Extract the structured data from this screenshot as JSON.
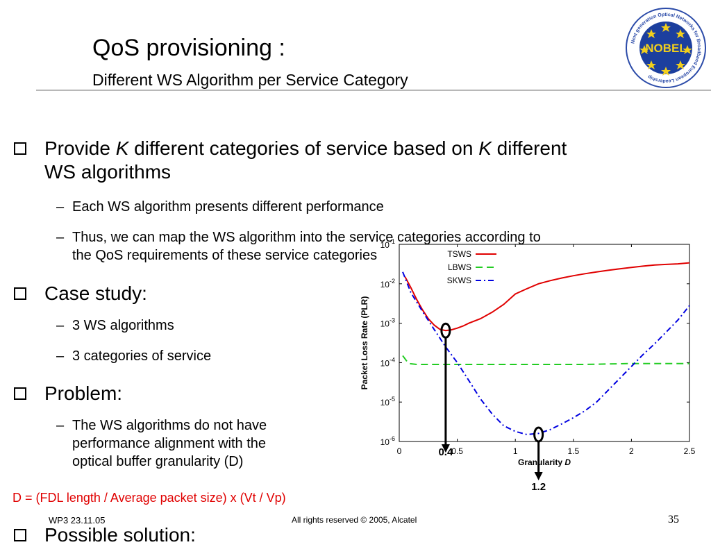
{
  "slide": {
    "title": "QoS provisioning :",
    "subtitle": "Different WS Algorithm per Service Category",
    "logo": {
      "icon": "nobel-logo",
      "center_text": "NOBEL",
      "ring_text": "Next generation Optical Networks for Broadband European Leadership"
    }
  },
  "bullets": {
    "provide": {
      "p1": "Provide ",
      "k": "K",
      "p2": " different categories of service based on ",
      "p3": " different",
      "line2": "WS algorithms"
    },
    "provide_sub": [
      "Each WS algorithm presents different performance",
      "Thus, we can map the WS algorithm into the service categories according to",
      "the QoS requirements of these service categories"
    ],
    "case": "Case study:",
    "case_sub": [
      "3 WS algorithms",
      "3 categories of service"
    ],
    "problem": "Problem:",
    "problem_sub": [
      "The WS algorithms do not have",
      "performance alignment with the",
      "optical buffer granularity (D)"
    ],
    "possible": "Possible solution:"
  },
  "formula": "D = (FDL length / Average packet size) x (Vt / Vp)",
  "footer": {
    "left": "WP3 23.11.05",
    "center": "All rights reserved © 2005, Alcatel",
    "page": "35"
  },
  "chart_data": {
    "type": "line",
    "xlabel": "Granularity ",
    "xlabel_var": "D",
    "ylabel": "Packet Loss Rate (PLR)",
    "xlim": [
      0,
      2.5
    ],
    "ylim_log10": [
      -6,
      -1
    ],
    "y_scale": "log",
    "xticks": [
      "0",
      "0.5",
      "1",
      "1.5",
      "2",
      "2.5"
    ],
    "yticks": [
      {
        "base": "10",
        "exp": "-1"
      },
      {
        "base": "10",
        "exp": "-2"
      },
      {
        "base": "10",
        "exp": "-3"
      },
      {
        "base": "10",
        "exp": "-4"
      },
      {
        "base": "10",
        "exp": "-5"
      },
      {
        "base": "10",
        "exp": "-6"
      }
    ],
    "legend_position": "top-left",
    "series": [
      {
        "name": "TSWS",
        "color": "#e00000",
        "dash": "solid",
        "points": [
          [
            0.05,
            0.015
          ],
          [
            0.1,
            0.008
          ],
          [
            0.15,
            0.004
          ],
          [
            0.2,
            0.0022
          ],
          [
            0.25,
            0.0013
          ],
          [
            0.3,
            0.0009
          ],
          [
            0.35,
            0.0007
          ],
          [
            0.4,
            0.00065
          ],
          [
            0.45,
            0.00068
          ],
          [
            0.5,
            0.00075
          ],
          [
            0.55,
            0.00085
          ],
          [
            0.6,
            0.001
          ],
          [
            0.7,
            0.0013
          ],
          [
            0.8,
            0.0019
          ],
          [
            0.9,
            0.003
          ],
          [
            1.0,
            0.0055
          ],
          [
            1.1,
            0.0075
          ],
          [
            1.2,
            0.01
          ],
          [
            1.3,
            0.012
          ],
          [
            1.4,
            0.014
          ],
          [
            1.5,
            0.016
          ],
          [
            1.6,
            0.018
          ],
          [
            1.7,
            0.02
          ],
          [
            1.8,
            0.022
          ],
          [
            1.9,
            0.024
          ],
          [
            2.0,
            0.026
          ],
          [
            2.1,
            0.028
          ],
          [
            2.2,
            0.03
          ],
          [
            2.3,
            0.031
          ],
          [
            2.4,
            0.032
          ],
          [
            2.5,
            0.034
          ]
        ]
      },
      {
        "name": "LBWS",
        "color": "#22cc22",
        "dash": "long-dash",
        "points": [
          [
            0.03,
            0.00015
          ],
          [
            0.08,
            9.5e-05
          ],
          [
            0.15,
            9e-05
          ],
          [
            0.3,
            9e-05
          ],
          [
            0.5,
            9e-05
          ],
          [
            0.8,
            9e-05
          ],
          [
            1.0,
            9e-05
          ],
          [
            1.3,
            9e-05
          ],
          [
            1.6,
            9e-05
          ],
          [
            2.0,
            9.5e-05
          ],
          [
            2.3,
            9.5e-05
          ],
          [
            2.5,
            9.5e-05
          ]
        ]
      },
      {
        "name": "SKWS",
        "color": "#0000e0",
        "dash": "dash-dot",
        "points": [
          [
            0.03,
            0.02
          ],
          [
            0.1,
            0.006
          ],
          [
            0.2,
            0.002
          ],
          [
            0.3,
            0.0007
          ],
          [
            0.4,
            0.00025
          ],
          [
            0.5,
            0.0001
          ],
          [
            0.6,
            3.5e-05
          ],
          [
            0.7,
            1.2e-05
          ],
          [
            0.8,
            5e-06
          ],
          [
            0.9,
            2.5e-06
          ],
          [
            1.0,
            1.8e-06
          ],
          [
            1.1,
            1.5e-06
          ],
          [
            1.2,
            1.6e-06
          ],
          [
            1.3,
            2e-06
          ],
          [
            1.4,
            2.8e-06
          ],
          [
            1.5,
            4e-06
          ],
          [
            1.6,
            6e-06
          ],
          [
            1.7,
            1e-05
          ],
          [
            1.8,
            2e-05
          ],
          [
            1.9,
            4e-05
          ],
          [
            2.0,
            8e-05
          ],
          [
            2.1,
            0.00016
          ],
          [
            2.2,
            0.0003
          ],
          [
            2.3,
            0.0006
          ],
          [
            2.4,
            0.0012
          ],
          [
            2.5,
            0.0028
          ]
        ]
      }
    ],
    "annotations": [
      {
        "label": "0.4",
        "x": 0.4,
        "y": 0.00065
      },
      {
        "label": "1.2",
        "x": 1.2,
        "y": 1.5e-06
      }
    ]
  }
}
